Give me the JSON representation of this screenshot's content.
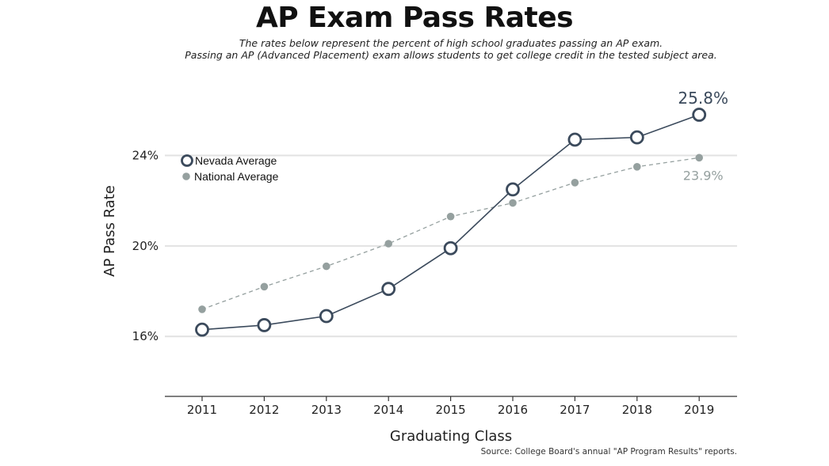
{
  "chart_data": {
    "type": "line",
    "title": "AP Exam Pass Rates",
    "subtitle_lines": [
      "The rates below represent the percent of high school graduates passing an AP exam.",
      "Passing an AP (Advanced Placement) exam allows students to get college credit in the tested subject area."
    ],
    "xlabel": "Graduating Class",
    "ylabel": "AP Pass Rate",
    "x": [
      "2011",
      "2012",
      "2013",
      "2014",
      "2015",
      "2016",
      "2017",
      "2018",
      "2019"
    ],
    "y_ticks": [
      16,
      20,
      24
    ],
    "y_tick_labels": [
      "16%",
      "20%",
      "24%"
    ],
    "ylim": [
      13.35,
      27.55
    ],
    "grid": true,
    "legend_position": "top-left",
    "series": [
      {
        "name": "Nevada Average",
        "values": [
          16.3,
          16.5,
          16.9,
          18.1,
          19.9,
          22.5,
          24.7,
          24.8,
          25.8
        ],
        "color": "#3b4a5c",
        "style": "solid",
        "marker": "open-circle",
        "end_label": "25.8%"
      },
      {
        "name": "National Average",
        "values": [
          17.2,
          18.2,
          19.1,
          20.1,
          21.3,
          21.9,
          22.8,
          23.5,
          23.9
        ],
        "color": "#95a09f",
        "style": "dashed",
        "marker": "dot",
        "end_label": "23.9%"
      }
    ],
    "source": "Source: College Board's annual \"AP Program Results\" reports."
  }
}
